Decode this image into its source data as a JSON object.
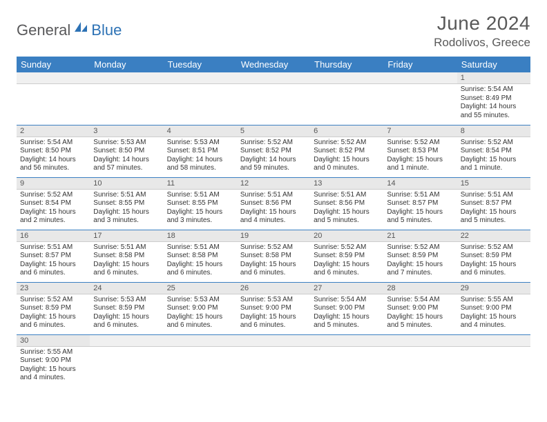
{
  "brand": {
    "part1": "General",
    "part2": "Blue"
  },
  "title": "June 2024",
  "location": "Rodolivos, Greece",
  "colors": {
    "header_bg": "#3a7fc2",
    "header_text": "#ffffff",
    "daynum_bg": "#e8e8e8",
    "text": "#333333",
    "title_text": "#595959",
    "logo_gray": "#58585a",
    "logo_blue": "#2d72b5"
  },
  "weekdays": [
    "Sunday",
    "Monday",
    "Tuesday",
    "Wednesday",
    "Thursday",
    "Friday",
    "Saturday"
  ],
  "weeks": [
    [
      {
        "n": "",
        "sr": "",
        "ss": "",
        "dl": ""
      },
      {
        "n": "",
        "sr": "",
        "ss": "",
        "dl": ""
      },
      {
        "n": "",
        "sr": "",
        "ss": "",
        "dl": ""
      },
      {
        "n": "",
        "sr": "",
        "ss": "",
        "dl": ""
      },
      {
        "n": "",
        "sr": "",
        "ss": "",
        "dl": ""
      },
      {
        "n": "",
        "sr": "",
        "ss": "",
        "dl": ""
      },
      {
        "n": "1",
        "sr": "Sunrise: 5:54 AM",
        "ss": "Sunset: 8:49 PM",
        "dl": "Daylight: 14 hours and 55 minutes."
      }
    ],
    [
      {
        "n": "2",
        "sr": "Sunrise: 5:54 AM",
        "ss": "Sunset: 8:50 PM",
        "dl": "Daylight: 14 hours and 56 minutes."
      },
      {
        "n": "3",
        "sr": "Sunrise: 5:53 AM",
        "ss": "Sunset: 8:50 PM",
        "dl": "Daylight: 14 hours and 57 minutes."
      },
      {
        "n": "4",
        "sr": "Sunrise: 5:53 AM",
        "ss": "Sunset: 8:51 PM",
        "dl": "Daylight: 14 hours and 58 minutes."
      },
      {
        "n": "5",
        "sr": "Sunrise: 5:52 AM",
        "ss": "Sunset: 8:52 PM",
        "dl": "Daylight: 14 hours and 59 minutes."
      },
      {
        "n": "6",
        "sr": "Sunrise: 5:52 AM",
        "ss": "Sunset: 8:52 PM",
        "dl": "Daylight: 15 hours and 0 minutes."
      },
      {
        "n": "7",
        "sr": "Sunrise: 5:52 AM",
        "ss": "Sunset: 8:53 PM",
        "dl": "Daylight: 15 hours and 1 minute."
      },
      {
        "n": "8",
        "sr": "Sunrise: 5:52 AM",
        "ss": "Sunset: 8:54 PM",
        "dl": "Daylight: 15 hours and 1 minute."
      }
    ],
    [
      {
        "n": "9",
        "sr": "Sunrise: 5:52 AM",
        "ss": "Sunset: 8:54 PM",
        "dl": "Daylight: 15 hours and 2 minutes."
      },
      {
        "n": "10",
        "sr": "Sunrise: 5:51 AM",
        "ss": "Sunset: 8:55 PM",
        "dl": "Daylight: 15 hours and 3 minutes."
      },
      {
        "n": "11",
        "sr": "Sunrise: 5:51 AM",
        "ss": "Sunset: 8:55 PM",
        "dl": "Daylight: 15 hours and 3 minutes."
      },
      {
        "n": "12",
        "sr": "Sunrise: 5:51 AM",
        "ss": "Sunset: 8:56 PM",
        "dl": "Daylight: 15 hours and 4 minutes."
      },
      {
        "n": "13",
        "sr": "Sunrise: 5:51 AM",
        "ss": "Sunset: 8:56 PM",
        "dl": "Daylight: 15 hours and 5 minutes."
      },
      {
        "n": "14",
        "sr": "Sunrise: 5:51 AM",
        "ss": "Sunset: 8:57 PM",
        "dl": "Daylight: 15 hours and 5 minutes."
      },
      {
        "n": "15",
        "sr": "Sunrise: 5:51 AM",
        "ss": "Sunset: 8:57 PM",
        "dl": "Daylight: 15 hours and 5 minutes."
      }
    ],
    [
      {
        "n": "16",
        "sr": "Sunrise: 5:51 AM",
        "ss": "Sunset: 8:57 PM",
        "dl": "Daylight: 15 hours and 6 minutes."
      },
      {
        "n": "17",
        "sr": "Sunrise: 5:51 AM",
        "ss": "Sunset: 8:58 PM",
        "dl": "Daylight: 15 hours and 6 minutes."
      },
      {
        "n": "18",
        "sr": "Sunrise: 5:51 AM",
        "ss": "Sunset: 8:58 PM",
        "dl": "Daylight: 15 hours and 6 minutes."
      },
      {
        "n": "19",
        "sr": "Sunrise: 5:52 AM",
        "ss": "Sunset: 8:58 PM",
        "dl": "Daylight: 15 hours and 6 minutes."
      },
      {
        "n": "20",
        "sr": "Sunrise: 5:52 AM",
        "ss": "Sunset: 8:59 PM",
        "dl": "Daylight: 15 hours and 6 minutes."
      },
      {
        "n": "21",
        "sr": "Sunrise: 5:52 AM",
        "ss": "Sunset: 8:59 PM",
        "dl": "Daylight: 15 hours and 7 minutes."
      },
      {
        "n": "22",
        "sr": "Sunrise: 5:52 AM",
        "ss": "Sunset: 8:59 PM",
        "dl": "Daylight: 15 hours and 6 minutes."
      }
    ],
    [
      {
        "n": "23",
        "sr": "Sunrise: 5:52 AM",
        "ss": "Sunset: 8:59 PM",
        "dl": "Daylight: 15 hours and 6 minutes."
      },
      {
        "n": "24",
        "sr": "Sunrise: 5:53 AM",
        "ss": "Sunset: 8:59 PM",
        "dl": "Daylight: 15 hours and 6 minutes."
      },
      {
        "n": "25",
        "sr": "Sunrise: 5:53 AM",
        "ss": "Sunset: 9:00 PM",
        "dl": "Daylight: 15 hours and 6 minutes."
      },
      {
        "n": "26",
        "sr": "Sunrise: 5:53 AM",
        "ss": "Sunset: 9:00 PM",
        "dl": "Daylight: 15 hours and 6 minutes."
      },
      {
        "n": "27",
        "sr": "Sunrise: 5:54 AM",
        "ss": "Sunset: 9:00 PM",
        "dl": "Daylight: 15 hours and 5 minutes."
      },
      {
        "n": "28",
        "sr": "Sunrise: 5:54 AM",
        "ss": "Sunset: 9:00 PM",
        "dl": "Daylight: 15 hours and 5 minutes."
      },
      {
        "n": "29",
        "sr": "Sunrise: 5:55 AM",
        "ss": "Sunset: 9:00 PM",
        "dl": "Daylight: 15 hours and 4 minutes."
      }
    ],
    [
      {
        "n": "30",
        "sr": "Sunrise: 5:55 AM",
        "ss": "Sunset: 9:00 PM",
        "dl": "Daylight: 15 hours and 4 minutes."
      },
      {
        "n": "",
        "sr": "",
        "ss": "",
        "dl": ""
      },
      {
        "n": "",
        "sr": "",
        "ss": "",
        "dl": ""
      },
      {
        "n": "",
        "sr": "",
        "ss": "",
        "dl": ""
      },
      {
        "n": "",
        "sr": "",
        "ss": "",
        "dl": ""
      },
      {
        "n": "",
        "sr": "",
        "ss": "",
        "dl": ""
      },
      {
        "n": "",
        "sr": "",
        "ss": "",
        "dl": ""
      }
    ]
  ]
}
